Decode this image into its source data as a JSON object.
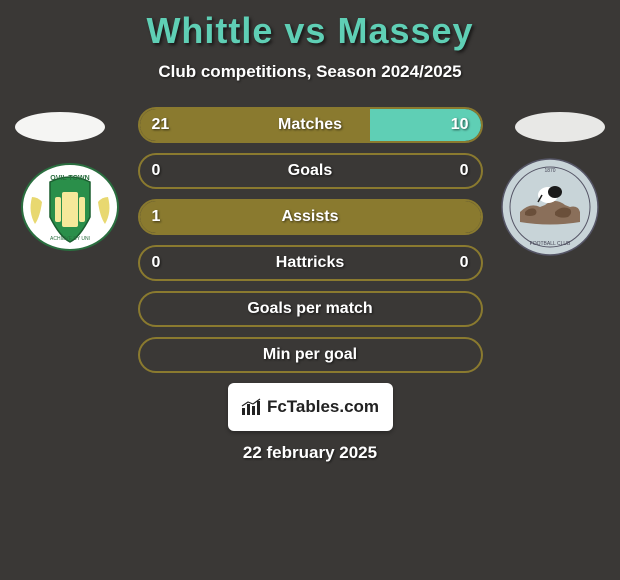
{
  "header": {
    "title": "Whittle vs Massey",
    "title_color": "#5fcfb5",
    "subtitle": "Club competitions, Season 2024/2025"
  },
  "colors": {
    "left_fill": "#8a7a2f",
    "right_fill": "#5fcfb5",
    "border": "#8a7a2f",
    "background": "#3a3836",
    "text": "#ffffff"
  },
  "stats": [
    {
      "label": "Matches",
      "left_value": "21",
      "right_value": "10",
      "left_pct": 67.7,
      "right_pct": 32.3
    },
    {
      "label": "Goals",
      "left_value": "0",
      "right_value": "0",
      "left_pct": 0,
      "right_pct": 0
    },
    {
      "label": "Assists",
      "left_value": "1",
      "right_value": "",
      "left_pct": 100,
      "right_pct": 0
    },
    {
      "label": "Hattricks",
      "left_value": "0",
      "right_value": "0",
      "left_pct": 0,
      "right_pct": 0
    },
    {
      "label": "Goals per match",
      "left_value": "",
      "right_value": "",
      "left_pct": 0,
      "right_pct": 0
    },
    {
      "label": "Min per goal",
      "left_value": "",
      "right_value": "",
      "left_pct": 0,
      "right_pct": 0
    }
  ],
  "footer": {
    "site_name": "FcTables.com",
    "date": "22 february 2025"
  },
  "badges": {
    "left_ellipse_color": "#f5f5f3",
    "right_ellipse_color": "#e8e8e6"
  }
}
